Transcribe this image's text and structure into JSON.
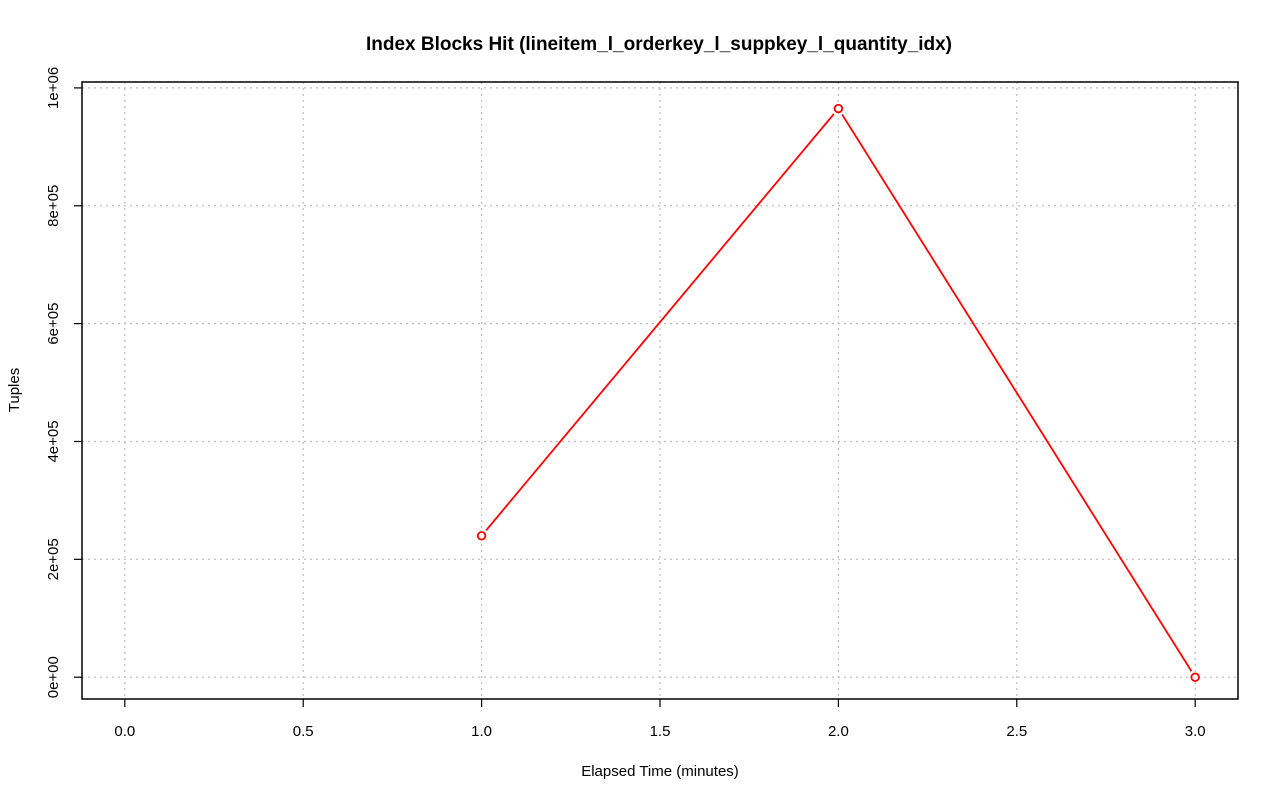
{
  "chart_data": {
    "type": "line",
    "title": "Index Blocks Hit (lineitem_l_orderkey_l_suppkey_l_quantity_idx)",
    "xlabel": "Elapsed Time (minutes)",
    "ylabel": "Tuples",
    "x_ticks": [
      0.0,
      0.5,
      1.0,
      1.5,
      2.0,
      2.5,
      3.0
    ],
    "x_tick_labels": [
      "0.0",
      "0.5",
      "1.0",
      "1.5",
      "2.0",
      "2.5",
      "3.0"
    ],
    "y_ticks": [
      0,
      200000,
      400000,
      600000,
      800000,
      1000000
    ],
    "y_tick_labels": [
      "0e+00",
      "2e+05",
      "4e+05",
      "6e+05",
      "8e+05",
      "1e+06"
    ],
    "xlim": [
      -0.12,
      3.12
    ],
    "ylim": [
      -37000,
      1010000
    ],
    "grid": true,
    "series": [
      {
        "color": "#ff0000",
        "marker": "open-circle",
        "x": [
          1,
          2,
          3
        ],
        "y": [
          240000,
          965000,
          0
        ]
      }
    ]
  }
}
